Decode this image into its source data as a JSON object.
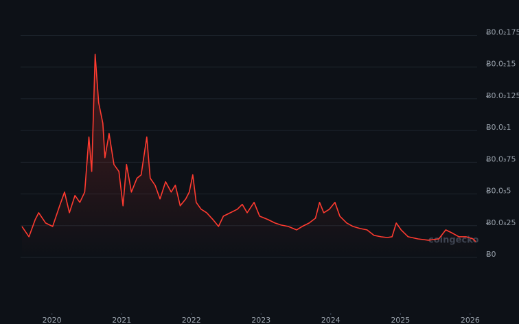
{
  "chart_data": {
    "type": "line",
    "watermark": "coingecko",
    "x": [
      2019.57,
      2019.67,
      2019.76,
      2019.81,
      2019.91,
      2020.01,
      2020.11,
      2020.18,
      2020.25,
      2020.33,
      2020.4,
      2020.47,
      2020.53,
      2020.57,
      2020.62,
      2020.67,
      2020.73,
      2020.76,
      2020.82,
      2020.89,
      2020.96,
      2021.02,
      2021.07,
      2021.14,
      2021.22,
      2021.28,
      2021.36,
      2021.41,
      2021.48,
      2021.55,
      2021.63,
      2021.71,
      2021.77,
      2021.84,
      2021.92,
      2021.97,
      2022.02,
      2022.07,
      2022.14,
      2022.22,
      2022.31,
      2022.39,
      2022.46,
      2022.56,
      2022.66,
      2022.73,
      2022.8,
      2022.9,
      2022.98,
      2023.1,
      2023.2,
      2023.29,
      2023.39,
      2023.51,
      2023.59,
      2023.69,
      2023.78,
      2023.84,
      2023.9,
      2023.98,
      2024.06,
      2024.13,
      2024.23,
      2024.32,
      2024.42,
      2024.52,
      2024.62,
      2024.72,
      2024.81,
      2024.88,
      2024.94,
      2025.01,
      2025.11,
      2025.25,
      2025.4,
      2025.55,
      2025.65,
      2025.75,
      2025.84,
      2025.94,
      2026.04,
      2026.08
    ],
    "series": [
      {
        "color": "#ff3b30",
        "values": [
          0.000244,
          0.000163,
          0.000298,
          0.000352,
          0.000271,
          0.000244,
          0.000407,
          0.000515,
          0.000352,
          0.000488,
          0.000434,
          0.000515,
          0.000949,
          0.000678,
          0.0016,
          0.00122,
          0.001057,
          0.000786,
          0.000976,
          0.000732,
          0.000678,
          0.000407,
          0.000732,
          0.000515,
          0.000624,
          0.000651,
          0.000949,
          0.000624,
          0.000569,
          0.000461,
          0.000596,
          0.000515,
          0.000569,
          0.000407,
          0.000461,
          0.000515,
          0.000651,
          0.000434,
          0.00038,
          0.000352,
          0.000298,
          0.000244,
          0.000325,
          0.000352,
          0.00038,
          0.000418,
          0.000352,
          0.000434,
          0.000325,
          0.000298,
          0.000271,
          0.000255,
          0.000244,
          0.000217,
          0.000244,
          0.000271,
          0.000309,
          0.000434,
          0.000352,
          0.00038,
          0.000434,
          0.000325,
          0.000271,
          0.000244,
          0.000228,
          0.000217,
          0.000174,
          0.000163,
          0.000157,
          0.000163,
          0.000271,
          0.000217,
          0.000163,
          0.000146,
          0.000136,
          0.000146,
          0.000217,
          0.00019,
          0.000163,
          0.000163,
          0.000146,
          0.000125
        ]
      }
    ],
    "xlim": [
      2019.55,
      2026.1
    ],
    "xticks": [
      2020,
      2021,
      2022,
      2023,
      2024,
      2025,
      2026
    ],
    "ylim": [
      0,
      0.00185
    ],
    "yticks": [
      {
        "value": 0,
        "label": "Ƀ0"
      },
      {
        "value": 0.00025,
        "label": "Ƀ0.0₃25"
      },
      {
        "value": 0.0005,
        "label": "Ƀ0.0₃5"
      },
      {
        "value": 0.00075,
        "label": "Ƀ0.0₃75"
      },
      {
        "value": 0.001,
        "label": "Ƀ0.0₂1"
      },
      {
        "value": 0.00125,
        "label": "Ƀ0.0₂125"
      },
      {
        "value": 0.0015,
        "label": "Ƀ0.0₂15"
      },
      {
        "value": 0.00175,
        "label": "Ƀ0.0₂175"
      }
    ],
    "grid": true
  }
}
